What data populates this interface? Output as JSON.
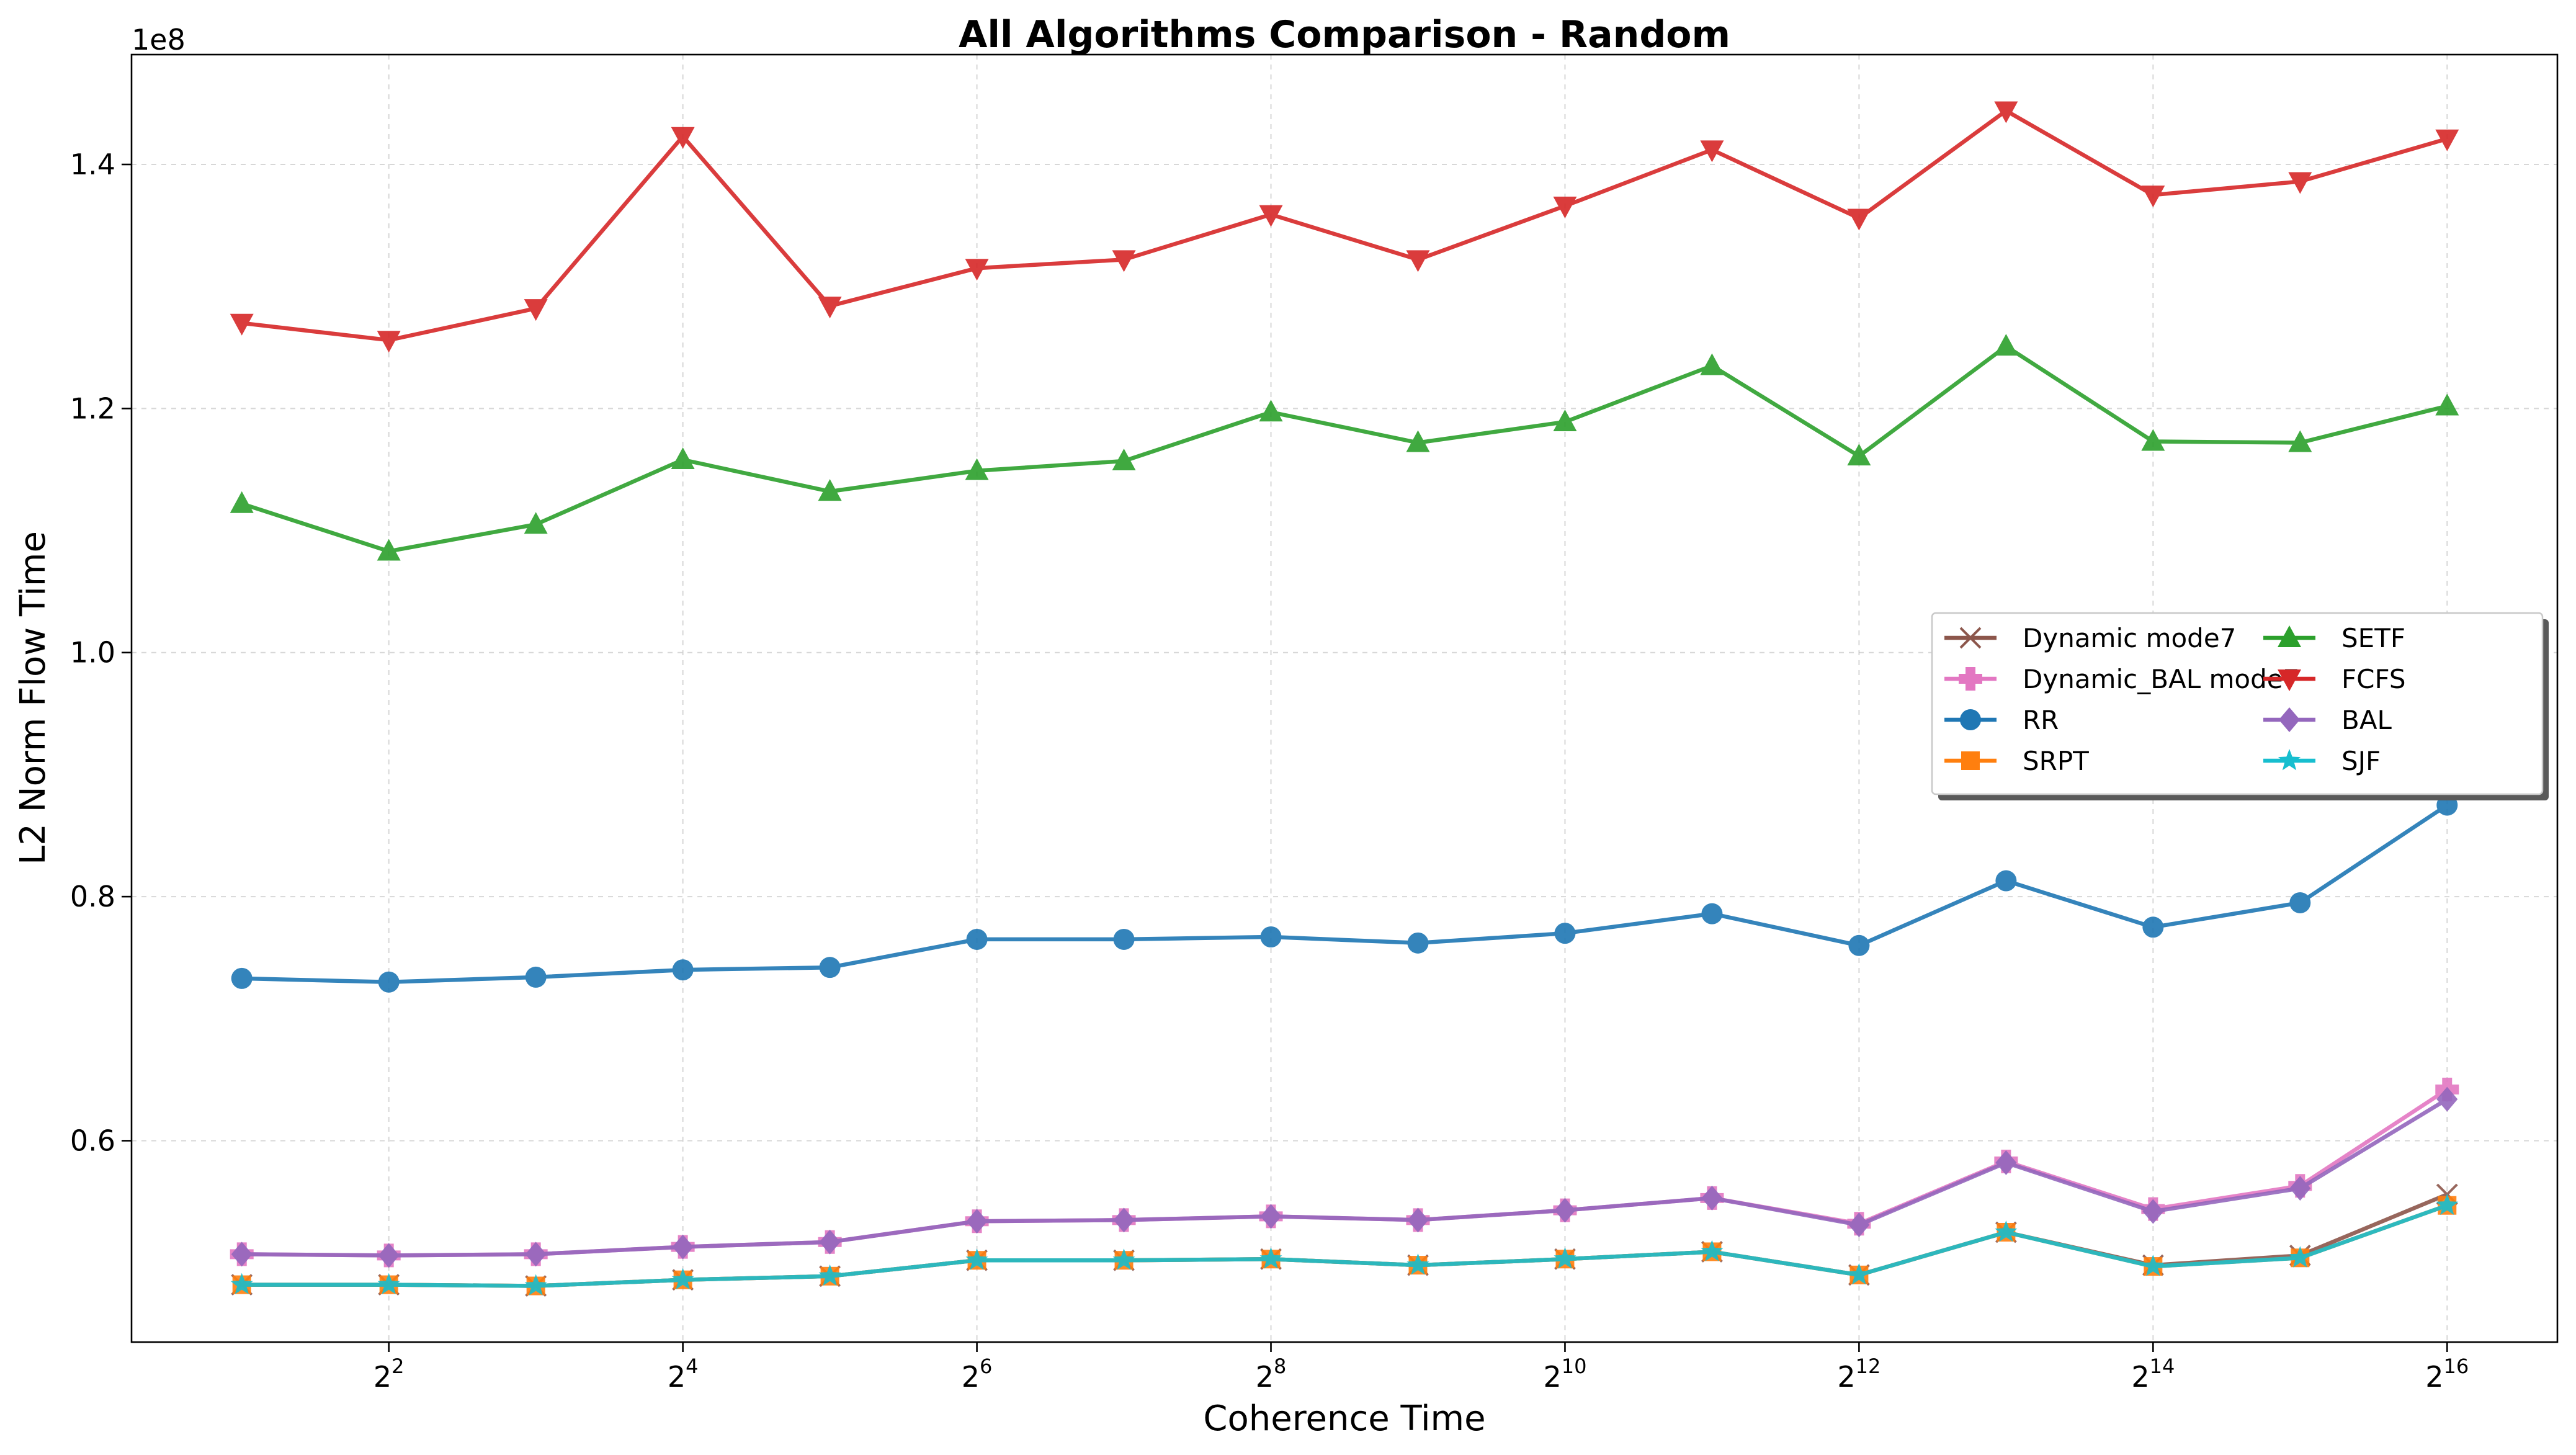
{
  "chart_data": {
    "type": "line",
    "title": "All Algorithms Comparison - Random",
    "xlabel": "Coherence Time",
    "ylabel": "L2 Norm Flow Time",
    "y_offset_label": "1e8",
    "x_scale": "log2",
    "x": [
      2,
      4,
      8,
      16,
      32,
      64,
      128,
      256,
      512,
      1024,
      2048,
      4096,
      8192,
      16384,
      32768,
      65536
    ],
    "x_tick_values": [
      4,
      16,
      64,
      256,
      1024,
      4096,
      16384,
      65536
    ],
    "x_tick_labels": [
      {
        "base": "2",
        "exp": "2"
      },
      {
        "base": "2",
        "exp": "4"
      },
      {
        "base": "2",
        "exp": "6"
      },
      {
        "base": "2",
        "exp": "8"
      },
      {
        "base": "2",
        "exp": "10"
      },
      {
        "base": "2",
        "exp": "12"
      },
      {
        "base": "2",
        "exp": "14"
      },
      {
        "base": "2",
        "exp": "16"
      }
    ],
    "y_ticks": [
      0.6,
      0.8,
      1.0,
      1.2,
      1.4
    ],
    "y_tick_labels": [
      "0.6",
      "0.8",
      "1.0",
      "1.2",
      "1.4"
    ],
    "ylim": [
      0.435,
      1.49
    ],
    "grid": true,
    "legend_placement": "center-right",
    "legend_columns": 2,
    "series": [
      {
        "name": "Dynamic mode7",
        "color": "#8c564b",
        "marker": "x",
        "values": [
          0.482,
          0.482,
          0.481,
          0.486,
          0.489,
          0.502,
          0.502,
          0.503,
          0.498,
          0.503,
          0.509,
          0.49,
          0.525,
          0.498,
          0.506,
          0.556
        ]
      },
      {
        "name": "Dynamic_BAL mode7",
        "color": "#e377c2",
        "marker": "plus",
        "values": [
          0.507,
          0.506,
          0.507,
          0.513,
          0.517,
          0.534,
          0.535,
          0.538,
          0.535,
          0.543,
          0.553,
          0.532,
          0.583,
          0.544,
          0.563,
          0.642
        ]
      },
      {
        "name": "RR",
        "color": "#1f77b4",
        "marker": "circle",
        "values": [
          0.733,
          0.73,
          0.734,
          0.74,
          0.742,
          0.765,
          0.765,
          0.767,
          0.762,
          0.77,
          0.786,
          0.76,
          0.813,
          0.775,
          0.795,
          0.875
        ]
      },
      {
        "name": "SRPT",
        "color": "#ff7f0e",
        "marker": "square",
        "values": [
          0.482,
          0.482,
          0.481,
          0.486,
          0.489,
          0.502,
          0.502,
          0.503,
          0.498,
          0.503,
          0.509,
          0.49,
          0.525,
          0.497,
          0.504,
          0.547
        ]
      },
      {
        "name": "SETF",
        "color": "#2ca02c",
        "marker": "triangle-up",
        "values": [
          1.122,
          1.083,
          1.105,
          1.158,
          1.132,
          1.149,
          1.157,
          1.197,
          1.172,
          1.189,
          1.235,
          1.161,
          1.251,
          1.173,
          1.172,
          1.202
        ]
      },
      {
        "name": "FCFS",
        "color": "#d62728",
        "marker": "triangle-down",
        "values": [
          1.27,
          1.256,
          1.282,
          1.423,
          1.284,
          1.315,
          1.322,
          1.359,
          1.322,
          1.366,
          1.412,
          1.356,
          1.444,
          1.375,
          1.386,
          1.421
        ]
      },
      {
        "name": "BAL",
        "color": "#9467bd",
        "marker": "diamond",
        "values": [
          0.507,
          0.506,
          0.507,
          0.513,
          0.517,
          0.534,
          0.535,
          0.538,
          0.535,
          0.543,
          0.553,
          0.531,
          0.582,
          0.542,
          0.561,
          0.634
        ]
      },
      {
        "name": "SJF",
        "color": "#17becf",
        "marker": "star",
        "values": [
          0.482,
          0.482,
          0.481,
          0.486,
          0.489,
          0.502,
          0.502,
          0.503,
          0.498,
          0.503,
          0.509,
          0.49,
          0.525,
          0.497,
          0.504,
          0.547
        ]
      }
    ],
    "draw_order": [
      "Dynamic mode7",
      "Dynamic_BAL mode7",
      "RR",
      "SETF",
      "FCFS",
      "BAL",
      "SRPT",
      "SJF"
    ]
  }
}
